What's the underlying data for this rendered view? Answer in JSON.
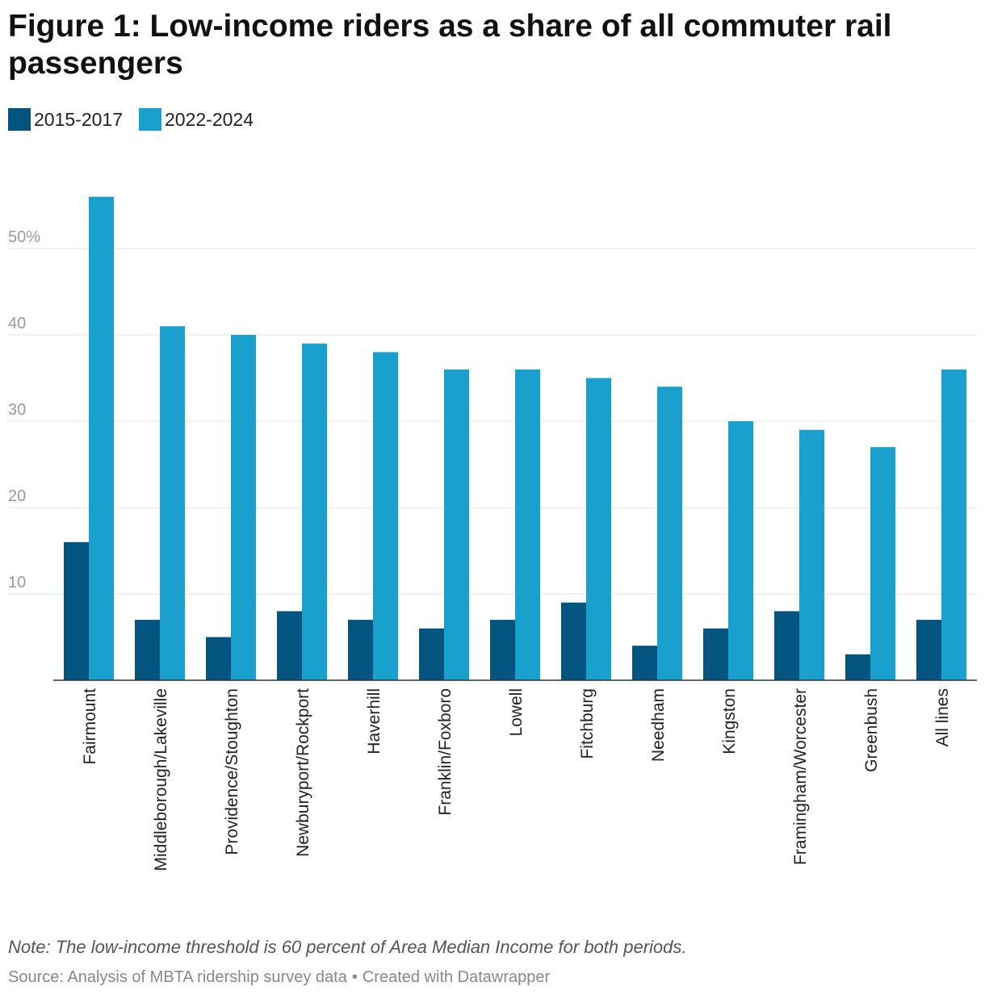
{
  "title": "Figure 1: Low-income riders as a share of all commuter rail passengers",
  "colors": {
    "series1": "#03547f",
    "series2": "#1aa0cd",
    "grid": "#e3e3e3",
    "tick": "#9a9a9a",
    "baseline": "#333333"
  },
  "note": "Note: The low-income threshold is 60 percent of Area Median Income for both periods.",
  "source": {
    "text": "Source: Analysis of MBTA ridership survey data",
    "separator": "•",
    "credit": "Created with Datawrapper"
  },
  "chart_data": {
    "type": "bar",
    "title": "Figure 1: Low-income riders as a share of all commuter rail passengers",
    "xlabel": "",
    "ylabel": "",
    "ylim": [
      0,
      56
    ],
    "yticks": [
      10,
      20,
      30,
      40,
      50
    ],
    "ytick_labels": [
      "10",
      "20",
      "30",
      "40",
      "50%"
    ],
    "grid": true,
    "legend_position": "top-left",
    "categories": [
      "Fairmount",
      "Middleborough/Lakeville",
      "Providence/Stoughton",
      "Newburyport/Rockport",
      "Haverhill",
      "Franklin/Foxboro",
      "Lowell",
      "Fitchburg",
      "Needham",
      "Kingston",
      "Framingham/Worcester",
      "Greenbush",
      "All lines"
    ],
    "series": [
      {
        "name": "2015-2017",
        "values": [
          16,
          7,
          5,
          8,
          7,
          6,
          7,
          9,
          4,
          6,
          8,
          3,
          7
        ]
      },
      {
        "name": "2022-2024",
        "values": [
          56,
          41,
          40,
          39,
          38,
          36,
          36,
          35,
          34,
          30,
          29,
          27,
          36
        ]
      }
    ]
  }
}
